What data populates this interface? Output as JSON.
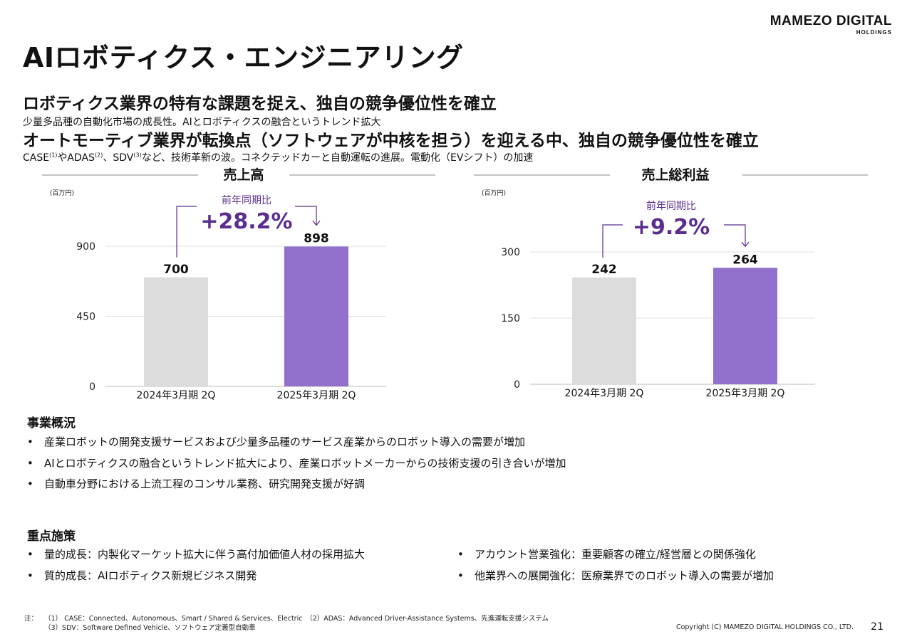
{
  "logo": {
    "main": "MAMEZO DIGITAL",
    "sub": "HOLDINGS"
  },
  "title": "AIロボティクス・エンジニアリング",
  "headlines": [
    {
      "heading": "ロボティクス業界の特有な課題を捉え、独自の競争優位性を確立",
      "sub": "少量多品種の自動化市場の成長性。AIとロボティクスの融合というトレンド拡大"
    },
    {
      "heading": "オートモーティブ業界が転換点（ソフトウェアが中核を担う）を迎える中、独自の競争優位性を確立",
      "sub_parts": [
        "CASE",
        "(1)",
        "やADAS",
        "(2)",
        "、SDV",
        "(3)",
        "など、技術革新の波。コネクテッドカーと自動運転の進展。電動化（EVシフト）の加速"
      ]
    }
  ],
  "chart_data": [
    {
      "type": "bar",
      "title": "売上高",
      "unit": "(百万円)",
      "categories": [
        "2024年3月期 2Q",
        "2025年3月期 2Q"
      ],
      "values": [
        700,
        898
      ],
      "value_labels": [
        "700",
        "898"
      ],
      "yticks": [
        0,
        450,
        900
      ],
      "ytick_labels": [
        "0",
        "450",
        "900"
      ],
      "ylim": [
        0,
        1000
      ],
      "colors": [
        "#dcdcdc",
        "#9271cd"
      ],
      "growth": {
        "label": "前年同期比",
        "value": "+28.2%"
      }
    },
    {
      "type": "bar",
      "title": "売上総利益",
      "unit": "(百万円)",
      "categories": [
        "2024年3月期 2Q",
        "2025年3月期 2Q"
      ],
      "values": [
        242,
        264
      ],
      "value_labels": [
        "242",
        "264"
      ],
      "yticks": [
        0,
        150,
        300
      ],
      "ytick_labels": [
        "0",
        "150",
        "300"
      ],
      "ylim": [
        0,
        300
      ],
      "colors": [
        "#dcdcdc",
        "#9271cd"
      ],
      "growth": {
        "label": "前年同期比",
        "value": "+9.2%"
      }
    }
  ],
  "colors": {
    "accent": "#5b2d8e",
    "accent_light": "#9271cd",
    "bar_gray": "#dcdcdc"
  },
  "business_overview": {
    "title": "事業概況",
    "items": [
      "産業ロボットの開発支援サービスおよび少量多品種のサービス産業からのロボット導入の需要が増加",
      "AIとロボティクスの融合というトレンド拡大により、産業ロボットメーカーからの技術支援の引き合いが増加",
      "自動車分野における上流工程のコンサル業務、研究開発支援が好調"
    ]
  },
  "key_measures": {
    "title": "重点施策",
    "left": [
      "量的成長：内製化マーケット拡大に伴う高付加価値人材の採用拡大",
      "質的成長：AIロボティクス新規ビジネス開発"
    ],
    "right": [
      "アカウント営業強化：重要顧客の確立/経営層との関係強化",
      "他業界への展開強化：医療業界でのロボット導入の需要が増加"
    ]
  },
  "notes": {
    "label": "注：",
    "line1": "（1） CASE：Connected、Autonomous、Smart / Shared & Services、Electric　（2）ADAS：Advanced Driver-Assistance Systems、先進運転支援システム",
    "line2": "（3）SDV：Software Defined Vehicle、ソフトウェア定義型自動車"
  },
  "copyright": "Copyright (C) MAMEZO DIGITAL HOLDINGS CO., LTD.",
  "page_number": "21"
}
